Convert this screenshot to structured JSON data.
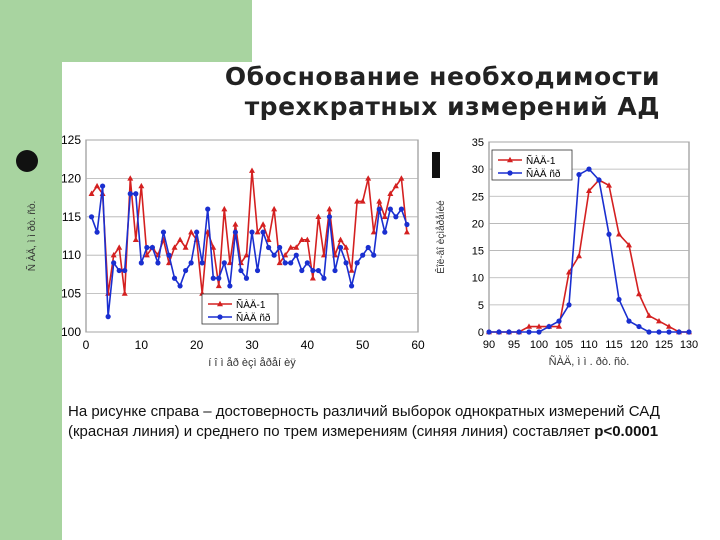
{
  "slide": {
    "title_line1": "Обоснование необходимости",
    "title_line2": "трехкратных измерений АД",
    "body_text_main": "На рисунке справа – достоверность различий выборок однократных измерений САД (красная линия) и среднего по трем измерениям (синяя линия) составляет ",
    "body_text_bold": "p<0.0001"
  },
  "colors": {
    "red": "#d42020",
    "blue": "#1a2fd0",
    "green": "#a8d4a0"
  },
  "chart_data": [
    {
      "type": "line",
      "xlabel": "í î ì åð èçì åðåí èÿ",
      "ylabel": "Ñ ÀÄ, ì ì  ðò. ñò.",
      "xlim": [
        0,
        60
      ],
      "ylim": [
        100,
        125
      ],
      "xticks": [
        0,
        10,
        20,
        30,
        40,
        50,
        60
      ],
      "yticks": [
        100,
        105,
        110,
        115,
        120,
        125
      ],
      "grid": true,
      "legend": "bottom-right",
      "series": [
        {
          "name": "ÑÀÄ-1",
          "color": "#d42020",
          "marker": "triangle",
          "x": [
            1,
            2,
            3,
            4,
            5,
            6,
            7,
            8,
            9,
            10,
            11,
            12,
            13,
            14,
            15,
            16,
            17,
            18,
            19,
            20,
            21,
            22,
            23,
            24,
            25,
            26,
            27,
            28,
            29,
            30,
            31,
            32,
            33,
            34,
            35,
            36,
            37,
            38,
            39,
            40,
            41,
            42,
            43,
            44,
            45,
            46,
            47,
            48,
            49,
            50,
            51,
            52,
            53,
            54,
            55,
            56,
            57,
            58
          ],
          "values": [
            118,
            119,
            118,
            105,
            110,
            111,
            105,
            120,
            112,
            119,
            110,
            111,
            110,
            112,
            109,
            111,
            112,
            111,
            113,
            112,
            105,
            113,
            111,
            106,
            116,
            109,
            114,
            109,
            110,
            121,
            113,
            114,
            112,
            116,
            109,
            110,
            111,
            111,
            112,
            112,
            107,
            115,
            110,
            116,
            110,
            112,
            111,
            108,
            117,
            117,
            120,
            113,
            117,
            115,
            118,
            119,
            120,
            113
          ]
        },
        {
          "name": "ÑÀÄ ñð",
          "color": "#1a2fd0",
          "marker": "circle",
          "x": [
            1,
            2,
            3,
            4,
            5,
            6,
            7,
            8,
            9,
            10,
            11,
            12,
            13,
            14,
            15,
            16,
            17,
            18,
            19,
            20,
            21,
            22,
            23,
            24,
            25,
            26,
            27,
            28,
            29,
            30,
            31,
            32,
            33,
            34,
            35,
            36,
            37,
            38,
            39,
            40,
            41,
            42,
            43,
            44,
            45,
            46,
            47,
            48,
            49,
            50,
            51,
            52,
            53,
            54,
            55,
            56,
            57,
            58
          ],
          "values": [
            115,
            113,
            119,
            102,
            109,
            108,
            108,
            118,
            118,
            109,
            111,
            111,
            109,
            113,
            110,
            107,
            106,
            108,
            109,
            113,
            109,
            116,
            107,
            107,
            109,
            106,
            113,
            108,
            107,
            113,
            108,
            113,
            111,
            110,
            111,
            109,
            109,
            110,
            108,
            109,
            108,
            108,
            107,
            115,
            108,
            111,
            109,
            106,
            109,
            110,
            111,
            110,
            116,
            113,
            116,
            115,
            116,
            114
          ]
        }
      ]
    },
    {
      "type": "line",
      "xlabel": "ÑÀÄ, ì ì . ðò. ñò.",
      "ylabel": "Êîë-âî èçìåðåíèé",
      "xlim": [
        90,
        130
      ],
      "ylim": [
        0,
        35
      ],
      "xticks": [
        90,
        95,
        100,
        105,
        110,
        115,
        120,
        125,
        130
      ],
      "yticks": [
        0,
        5,
        10,
        15,
        20,
        25,
        30,
        35
      ],
      "grid": true,
      "legend": "top-left",
      "series": [
        {
          "name": "ÑÀÄ-1",
          "color": "#d42020",
          "marker": "triangle",
          "x": [
            90,
            92,
            94,
            96,
            98,
            100,
            102,
            104,
            106,
            108,
            110,
            112,
            114,
            116,
            118,
            120,
            122,
            124,
            126,
            128,
            130
          ],
          "values": [
            0,
            0,
            0,
            0,
            1,
            1,
            1,
            1,
            11,
            14,
            26,
            28,
            27,
            18,
            16,
            7,
            3,
            2,
            1,
            0,
            0
          ]
        },
        {
          "name": "ÑÀÄ ñð",
          "color": "#1a2fd0",
          "marker": "circle",
          "x": [
            90,
            92,
            94,
            96,
            98,
            100,
            102,
            104,
            106,
            108,
            110,
            112,
            114,
            116,
            118,
            120,
            122,
            124,
            126,
            128,
            130
          ],
          "values": [
            0,
            0,
            0,
            0,
            0,
            0,
            1,
            2,
            5,
            29,
            30,
            28,
            18,
            6,
            2,
            1,
            0,
            0,
            0,
            0,
            0
          ]
        }
      ]
    }
  ]
}
